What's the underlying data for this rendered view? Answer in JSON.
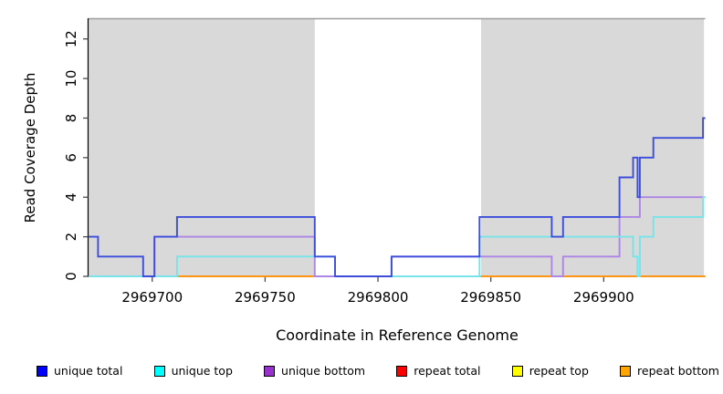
{
  "figure": {
    "xlabel": "Coordinate in Reference Genome",
    "ylabel": "Read Coverage Depth"
  },
  "chart_data": {
    "type": "line",
    "subtype": "step-coverage",
    "title": "",
    "xlabel": "Coordinate in Reference Genome",
    "ylabel": "Read Coverage Depth",
    "xlim": [
      2969671.8,
      2969945
    ],
    "ylim": [
      0,
      13
    ],
    "x_ticks": [
      2969700,
      2969750,
      2969800,
      2969850,
      2969900
    ],
    "y_ticks": [
      0,
      2,
      4,
      6,
      8,
      10,
      12
    ],
    "grid": false,
    "legend_position": "bottom",
    "background_color": "#ffffff",
    "shaded_regions": [
      {
        "name": "left-gray-band",
        "x1": 2969671.8,
        "x2": 2969772.0,
        "color": "#d9d9d9"
      },
      {
        "name": "right-gray-band",
        "x1": 2969845.7,
        "x2": 2969944.4,
        "color": "#d9d9d9"
      }
    ],
    "series": [
      {
        "name": "repeat total",
        "legend_color": "#ff0000",
        "render_color": "#e26f95",
        "type": "baseline-segments",
        "value": 0,
        "segments": [
          [
            2969671.8,
            2969701
          ],
          [
            2969772,
            2969782
          ]
        ]
      },
      {
        "name": "repeat top",
        "legend_color": "#ffff00",
        "render_color": "#87d9a2",
        "type": "baseline-segments",
        "value": 0,
        "segments": [
          [
            2969701,
            2969711
          ],
          [
            2969806,
            2969845.7
          ]
        ]
      },
      {
        "name": "repeat bottom",
        "legend_color": "#ffa500",
        "render_color": "#ff9514",
        "type": "baseline-segments",
        "value": 0,
        "segments": [
          [
            2969711,
            2969772
          ],
          [
            2969845.7,
            2969945
          ]
        ]
      },
      {
        "name": "unique bottom",
        "legend_color": "#9932cc",
        "render_color": "#ad85e4",
        "type": "step",
        "x_end": 2969945,
        "steps": [
          [
            2969671.8,
            0
          ],
          [
            2969701,
            2
          ],
          [
            2969772,
            0
          ],
          [
            2969806,
            1
          ],
          [
            2969877,
            0
          ],
          [
            2969882,
            1
          ],
          [
            2969907,
            3
          ],
          [
            2969916,
            4
          ]
        ]
      },
      {
        "name": "unique top",
        "legend_color": "#00ffff",
        "render_color": "#76e4e8",
        "type": "step",
        "x_end": 2969945,
        "steps": [
          [
            2969671.8,
            0
          ],
          [
            2969711,
            1
          ],
          [
            2969781,
            0
          ],
          [
            2969845,
            2
          ],
          [
            2969913,
            1
          ],
          [
            2969915,
            0
          ],
          [
            2969916,
            2
          ],
          [
            2969922,
            3
          ],
          [
            2969944,
            4
          ]
        ]
      },
      {
        "name": "unique total",
        "legend_color": "#0000ff",
        "render_color": "#3d4ddb",
        "type": "step",
        "x_end": 2969945,
        "steps": [
          [
            2969671.8,
            2
          ],
          [
            2969676,
            1
          ],
          [
            2969696,
            0
          ],
          [
            2969701,
            2
          ],
          [
            2969711,
            3
          ],
          [
            2969772,
            1
          ],
          [
            2969781,
            0
          ],
          [
            2969806,
            1
          ],
          [
            2969845,
            3
          ],
          [
            2969877,
            2
          ],
          [
            2969882,
            3
          ],
          [
            2969907,
            5
          ],
          [
            2969913,
            6
          ],
          [
            2969915,
            4
          ],
          [
            2969916,
            6
          ],
          [
            2969922,
            7
          ],
          [
            2969944,
            8
          ]
        ]
      }
    ],
    "legend": [
      {
        "label": "unique total",
        "color": "#0000ff"
      },
      {
        "label": "unique top",
        "color": "#00ffff"
      },
      {
        "label": "unique bottom",
        "color": "#9932cc"
      },
      {
        "label": "repeat total",
        "color": "#ff0000"
      },
      {
        "label": "repeat top",
        "color": "#ffff00"
      },
      {
        "label": "repeat bottom",
        "color": "#ffa500"
      }
    ]
  }
}
